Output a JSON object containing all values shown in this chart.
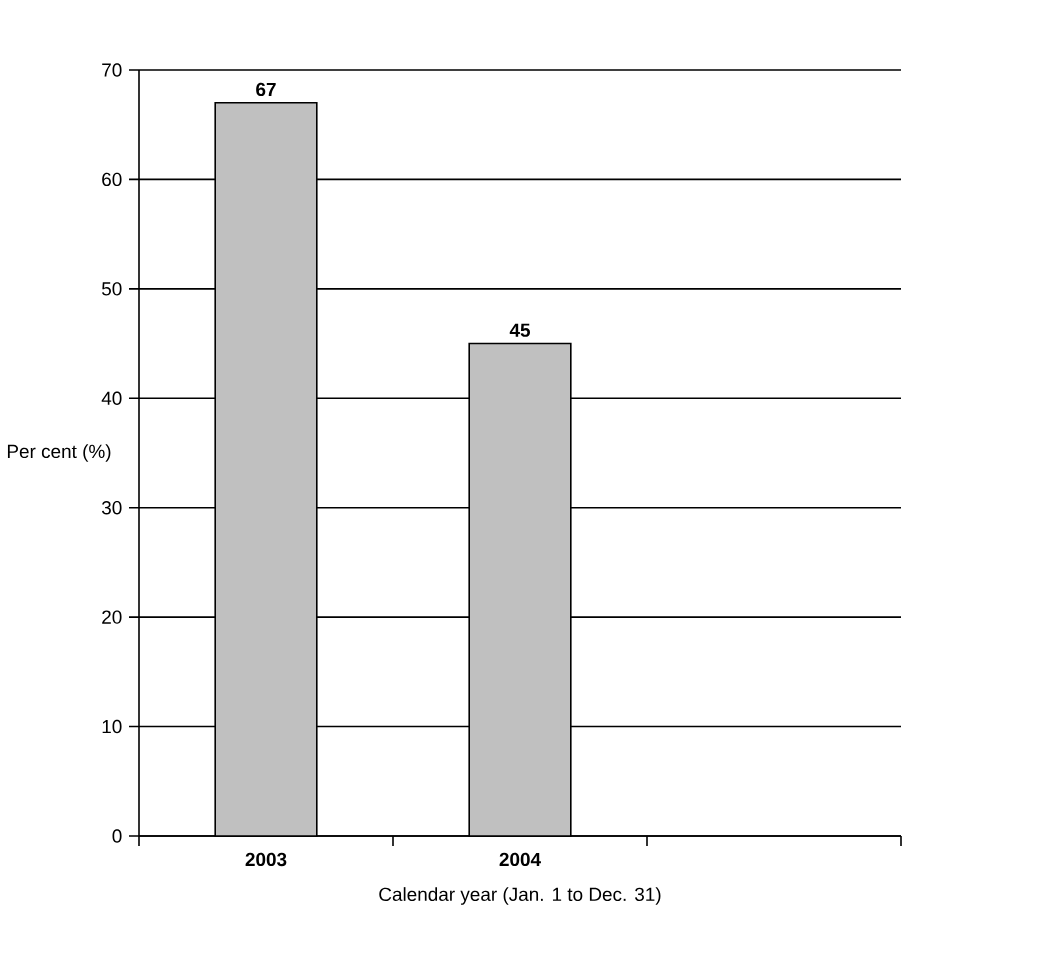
{
  "chart_data": {
    "type": "bar",
    "xlabel": "Calendar year (Jan. 1 to Dec. 31)",
    "ylabel": "Per cent (%)",
    "categories": [
      "2003",
      "2004",
      null
    ],
    "values": [
      67,
      45,
      null
    ],
    "color": "#c0c0c0",
    "ylim": [
      0,
      70
    ],
    "yticks": [
      0,
      10,
      20,
      30,
      40,
      50,
      60,
      70
    ],
    "grid": "y",
    "data_labels": true
  }
}
